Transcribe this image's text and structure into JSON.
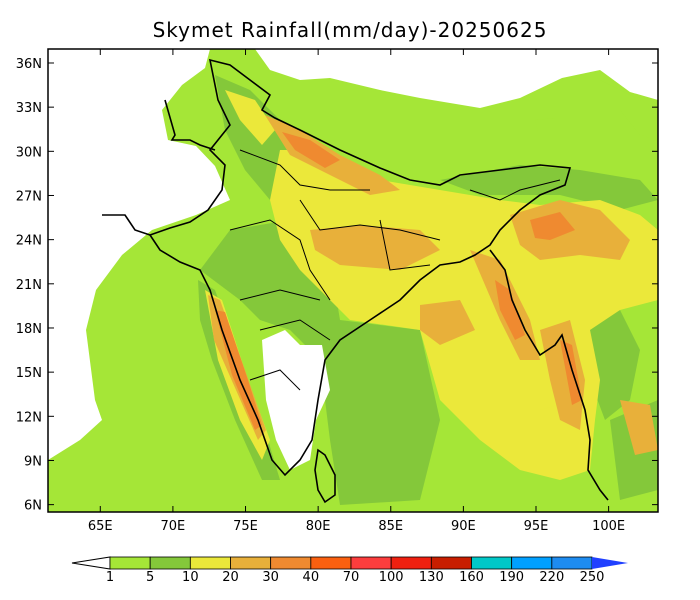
{
  "title": "Skymet Rainfall(mm/day)-20250625",
  "map": {
    "lat_ticks": [
      "36N",
      "33N",
      "30N",
      "27N",
      "24N",
      "21N",
      "18N",
      "15N",
      "12N",
      "9N",
      "6N"
    ],
    "lat_values": [
      36,
      33,
      30,
      27,
      24,
      21,
      18,
      15,
      12,
      9,
      6
    ],
    "lon_ticks": [
      "65E",
      "70E",
      "75E",
      "80E",
      "85E",
      "90E",
      "95E",
      "100E"
    ],
    "lon_values": [
      65,
      70,
      75,
      80,
      85,
      90,
      95,
      100
    ],
    "lon_range": [
      61.4,
      103.4
    ],
    "lat_range": [
      5.5,
      36.95
    ]
  },
  "legend": {
    "labels": [
      "1",
      "5",
      "10",
      "20",
      "30",
      "40",
      "70",
      "100",
      "130",
      "160",
      "190",
      "220",
      "250"
    ],
    "colors": [
      "#a5e637",
      "#84c83a",
      "#ebe83a",
      "#e8b03a",
      "#ef8a30",
      "#fa6010",
      "#fc3d3d",
      "#ef2010",
      "#c81e00",
      "#00c8c8",
      "#00a0ff",
      "#1e8cf0"
    ],
    "below_color": "#ffffff",
    "above_color": "#2040ff"
  }
}
